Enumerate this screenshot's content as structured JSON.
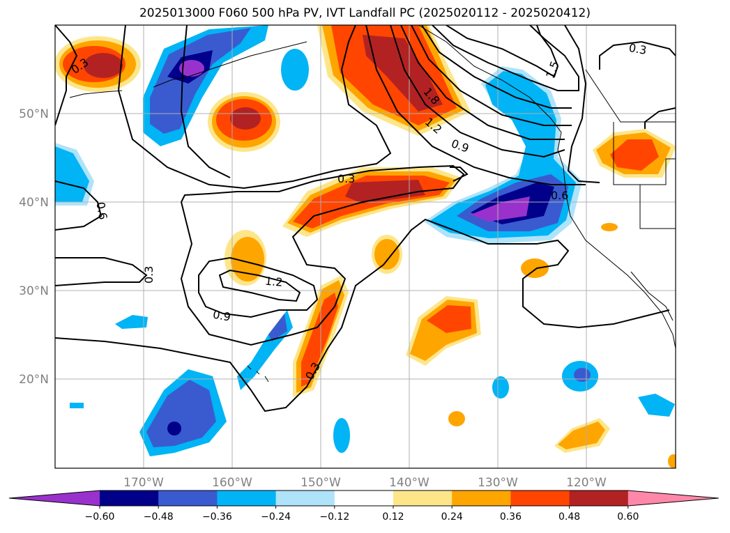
{
  "title": "2025013000 F060 500 hPa PV, IVT Landfall PC (2025020112 - 2025020412)",
  "lon_ticks": [
    "170°W",
    "160°W",
    "150°W",
    "140°W",
    "130°W",
    "120°W"
  ],
  "lat_ticks": [
    "50°N",
    "40°N",
    "30°N",
    "20°N"
  ],
  "colorbar": {
    "levels": [
      "−0.60",
      "−0.48",
      "−0.36",
      "−0.24",
      "−0.12",
      "0.12",
      "0.24",
      "0.36",
      "0.48",
      "0.60"
    ],
    "colors": [
      "#9932cc",
      "#00008b",
      "#3a5bd0",
      "#00b4f5",
      "#aee3fa",
      "#ffffff",
      "#fde68a",
      "#ffa500",
      "#ff4500",
      "#b22222",
      "#ff88aa"
    ]
  },
  "contour_labels": [
    "0.3",
    "0.3",
    "0.3",
    "0.3",
    "0.3",
    "0.6",
    "0.6",
    "0.9",
    "0.9",
    "1.2",
    "1.2",
    "1.5",
    "1.8"
  ]
}
